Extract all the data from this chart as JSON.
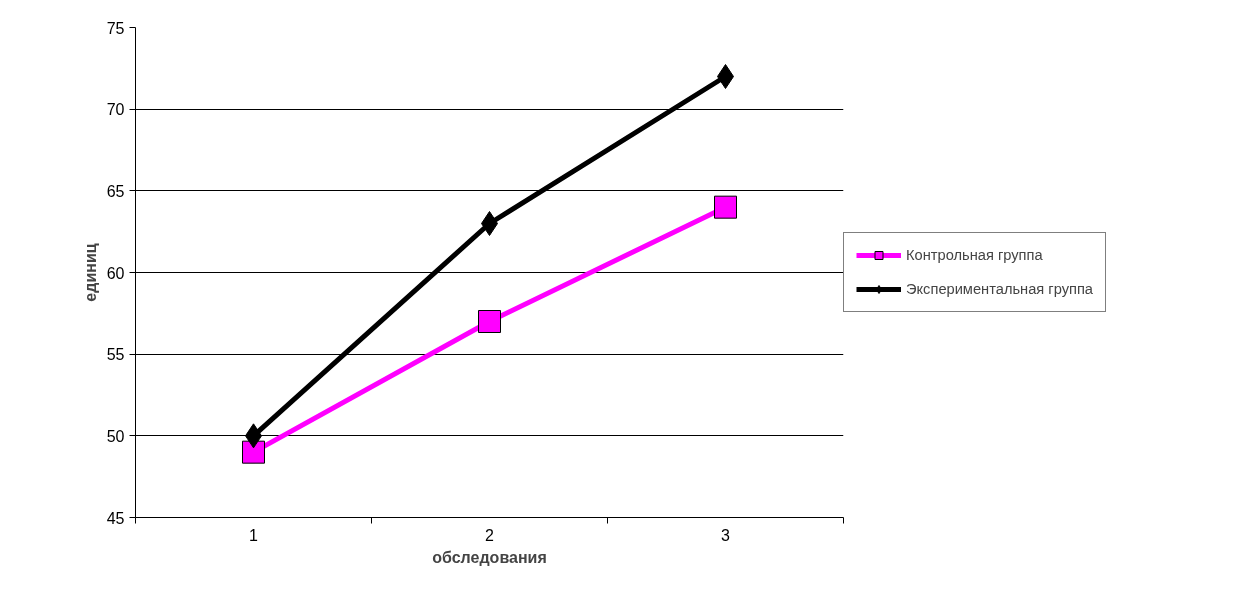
{
  "chart_data": {
    "type": "line",
    "xlabel": "обследования",
    "ylabel": "единиц",
    "categories": [
      "1",
      "2",
      "3"
    ],
    "series": [
      {
        "name": "Контрольная группа",
        "color": "#ff00ff",
        "marker": "square",
        "values": [
          49,
          57,
          64
        ]
      },
      {
        "name": "Экспериментальная группа",
        "color": "#000000",
        "marker": "diamond",
        "values": [
          50,
          63,
          72
        ]
      }
    ],
    "ylim": [
      45,
      75
    ],
    "yticks": [
      45,
      50,
      55,
      60,
      65,
      70,
      75
    ],
    "grid": "y",
    "legend": "right",
    "line_style": "solid"
  }
}
